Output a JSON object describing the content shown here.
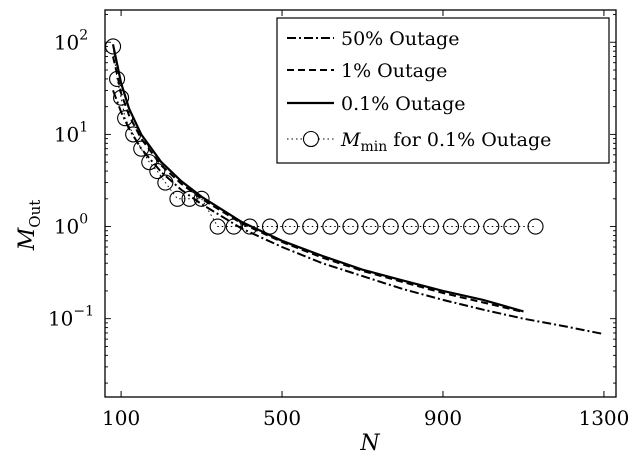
{
  "chart_data": {
    "type": "line",
    "xlabel": "N",
    "ylabel": "M",
    "ylabel_sub": "Out",
    "xlim": [
      60,
      1330
    ],
    "ylim_log10": [
      -1.85,
      2.35
    ],
    "y_scale": "log",
    "grid": false,
    "legend_position": "top-right",
    "x_ticks": [
      100,
      500,
      900,
      1300
    ],
    "y_ticks": [
      {
        "value": 100,
        "base": "10",
        "exp": "2"
      },
      {
        "value": 10,
        "base": "10",
        "exp": "1"
      },
      {
        "value": 1,
        "base": "10",
        "exp": "0"
      },
      {
        "value": 0.1,
        "base": "10",
        "exp": "−1"
      }
    ],
    "series": [
      {
        "name": "50% Outage",
        "style": "dashdot",
        "x": [
          80,
          90,
          100,
          120,
          150,
          200,
          250,
          300,
          400,
          500,
          600,
          700,
          800,
          900,
          1000,
          1100,
          1200,
          1300
        ],
        "y": [
          30,
          23,
          17.5,
          11.5,
          7,
          3.9,
          2.5,
          1.75,
          0.95,
          0.6,
          0.4,
          0.29,
          0.21,
          0.16,
          0.125,
          0.1,
          0.083,
          0.068
        ]
      },
      {
        "name": "1% Outage",
        "style": "dashed",
        "x": [
          80,
          90,
          100,
          120,
          150,
          200,
          250,
          300,
          400,
          500,
          600,
          700,
          800,
          900,
          1000,
          1100
        ],
        "y": [
          70,
          45,
          28,
          16,
          9,
          4.6,
          2.9,
          2,
          1.08,
          0.68,
          0.46,
          0.33,
          0.25,
          0.19,
          0.15,
          0.118
        ]
      },
      {
        "name": "0.1% Outage",
        "style": "solid",
        "x": [
          80,
          90,
          100,
          120,
          150,
          200,
          250,
          300,
          400,
          500,
          600,
          700,
          800,
          900,
          1000,
          1100
        ],
        "y": [
          95,
          58,
          36,
          19,
          10,
          5,
          3.1,
          2.1,
          1.12,
          0.7,
          0.48,
          0.34,
          0.26,
          0.2,
          0.16,
          0.12
        ]
      },
      {
        "name_prefix": "M",
        "name_sub": "min",
        "name_suffix": " for 0.1% Outage",
        "style": "dotted-circles",
        "x": [
          80,
          90,
          100,
          110,
          130,
          150,
          170,
          190,
          210,
          240,
          270,
          300,
          340,
          380,
          420,
          470,
          520,
          570,
          620,
          670,
          720,
          770,
          820,
          870,
          920,
          970,
          1020,
          1070,
          1130
        ],
        "y": [
          90,
          40,
          25,
          15,
          10,
          7,
          5,
          4,
          3,
          2,
          2,
          2,
          1,
          1,
          1,
          1,
          1,
          1,
          1,
          1,
          1,
          1,
          1,
          1,
          1,
          1,
          1,
          1,
          1
        ]
      }
    ]
  }
}
